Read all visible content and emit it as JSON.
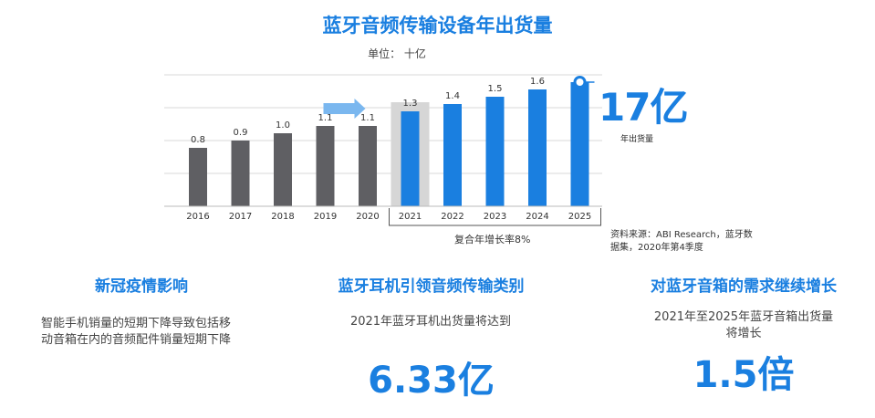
{
  "header": {
    "title": "蓝牙音频传输设备年出货量",
    "unit": "单位： 十亿"
  },
  "chart_data": {
    "type": "bar",
    "title": "蓝牙音频传输设备年出货量",
    "unit_label": "单位： 十亿",
    "categories": [
      "2016",
      "2017",
      "2018",
      "2019",
      "2020",
      "2021",
      "2022",
      "2023",
      "2024",
      "2025"
    ],
    "values": [
      0.8,
      0.9,
      1.0,
      1.1,
      1.1,
      1.3,
      1.4,
      1.5,
      1.6,
      1.7
    ],
    "labels": [
      "0.8",
      "0.9",
      "1.0",
      "1.1",
      "1.1",
      "1.3",
      "1.4",
      "1.5",
      "1.6",
      ""
    ],
    "colors": {
      "historical": "#5f5f63",
      "forecast": "#1a7fe0",
      "highlight_bg": "#d6d6d6",
      "arrow": "#7ab7ef",
      "grid": "#d9d9d9"
    },
    "ylim": [
      0,
      1.8
    ],
    "grid": true,
    "highlight_category": "2021",
    "forecast_from": "2021",
    "annotation": {
      "value": "17亿",
      "label": "年出货量"
    },
    "cagr_label": "复合年增长率8%"
  },
  "source": "资料来源：ABI Research，蓝牙数据集，2020年第4季度",
  "columns": [
    {
      "title": "新冠疫情影响",
      "text": "智能手机销量的短期下降导致包括移动音箱在内的音频配件销量短期下降"
    },
    {
      "title": "蓝牙耳机引领音频传输类别",
      "text": "2021年蓝牙耳机出货量将达到",
      "big": "6.33亿"
    },
    {
      "title": "对蓝牙音箱的需求继续增长",
      "text": "2021年至2025年蓝牙音箱出货量将增长",
      "big": "1.5倍"
    }
  ]
}
